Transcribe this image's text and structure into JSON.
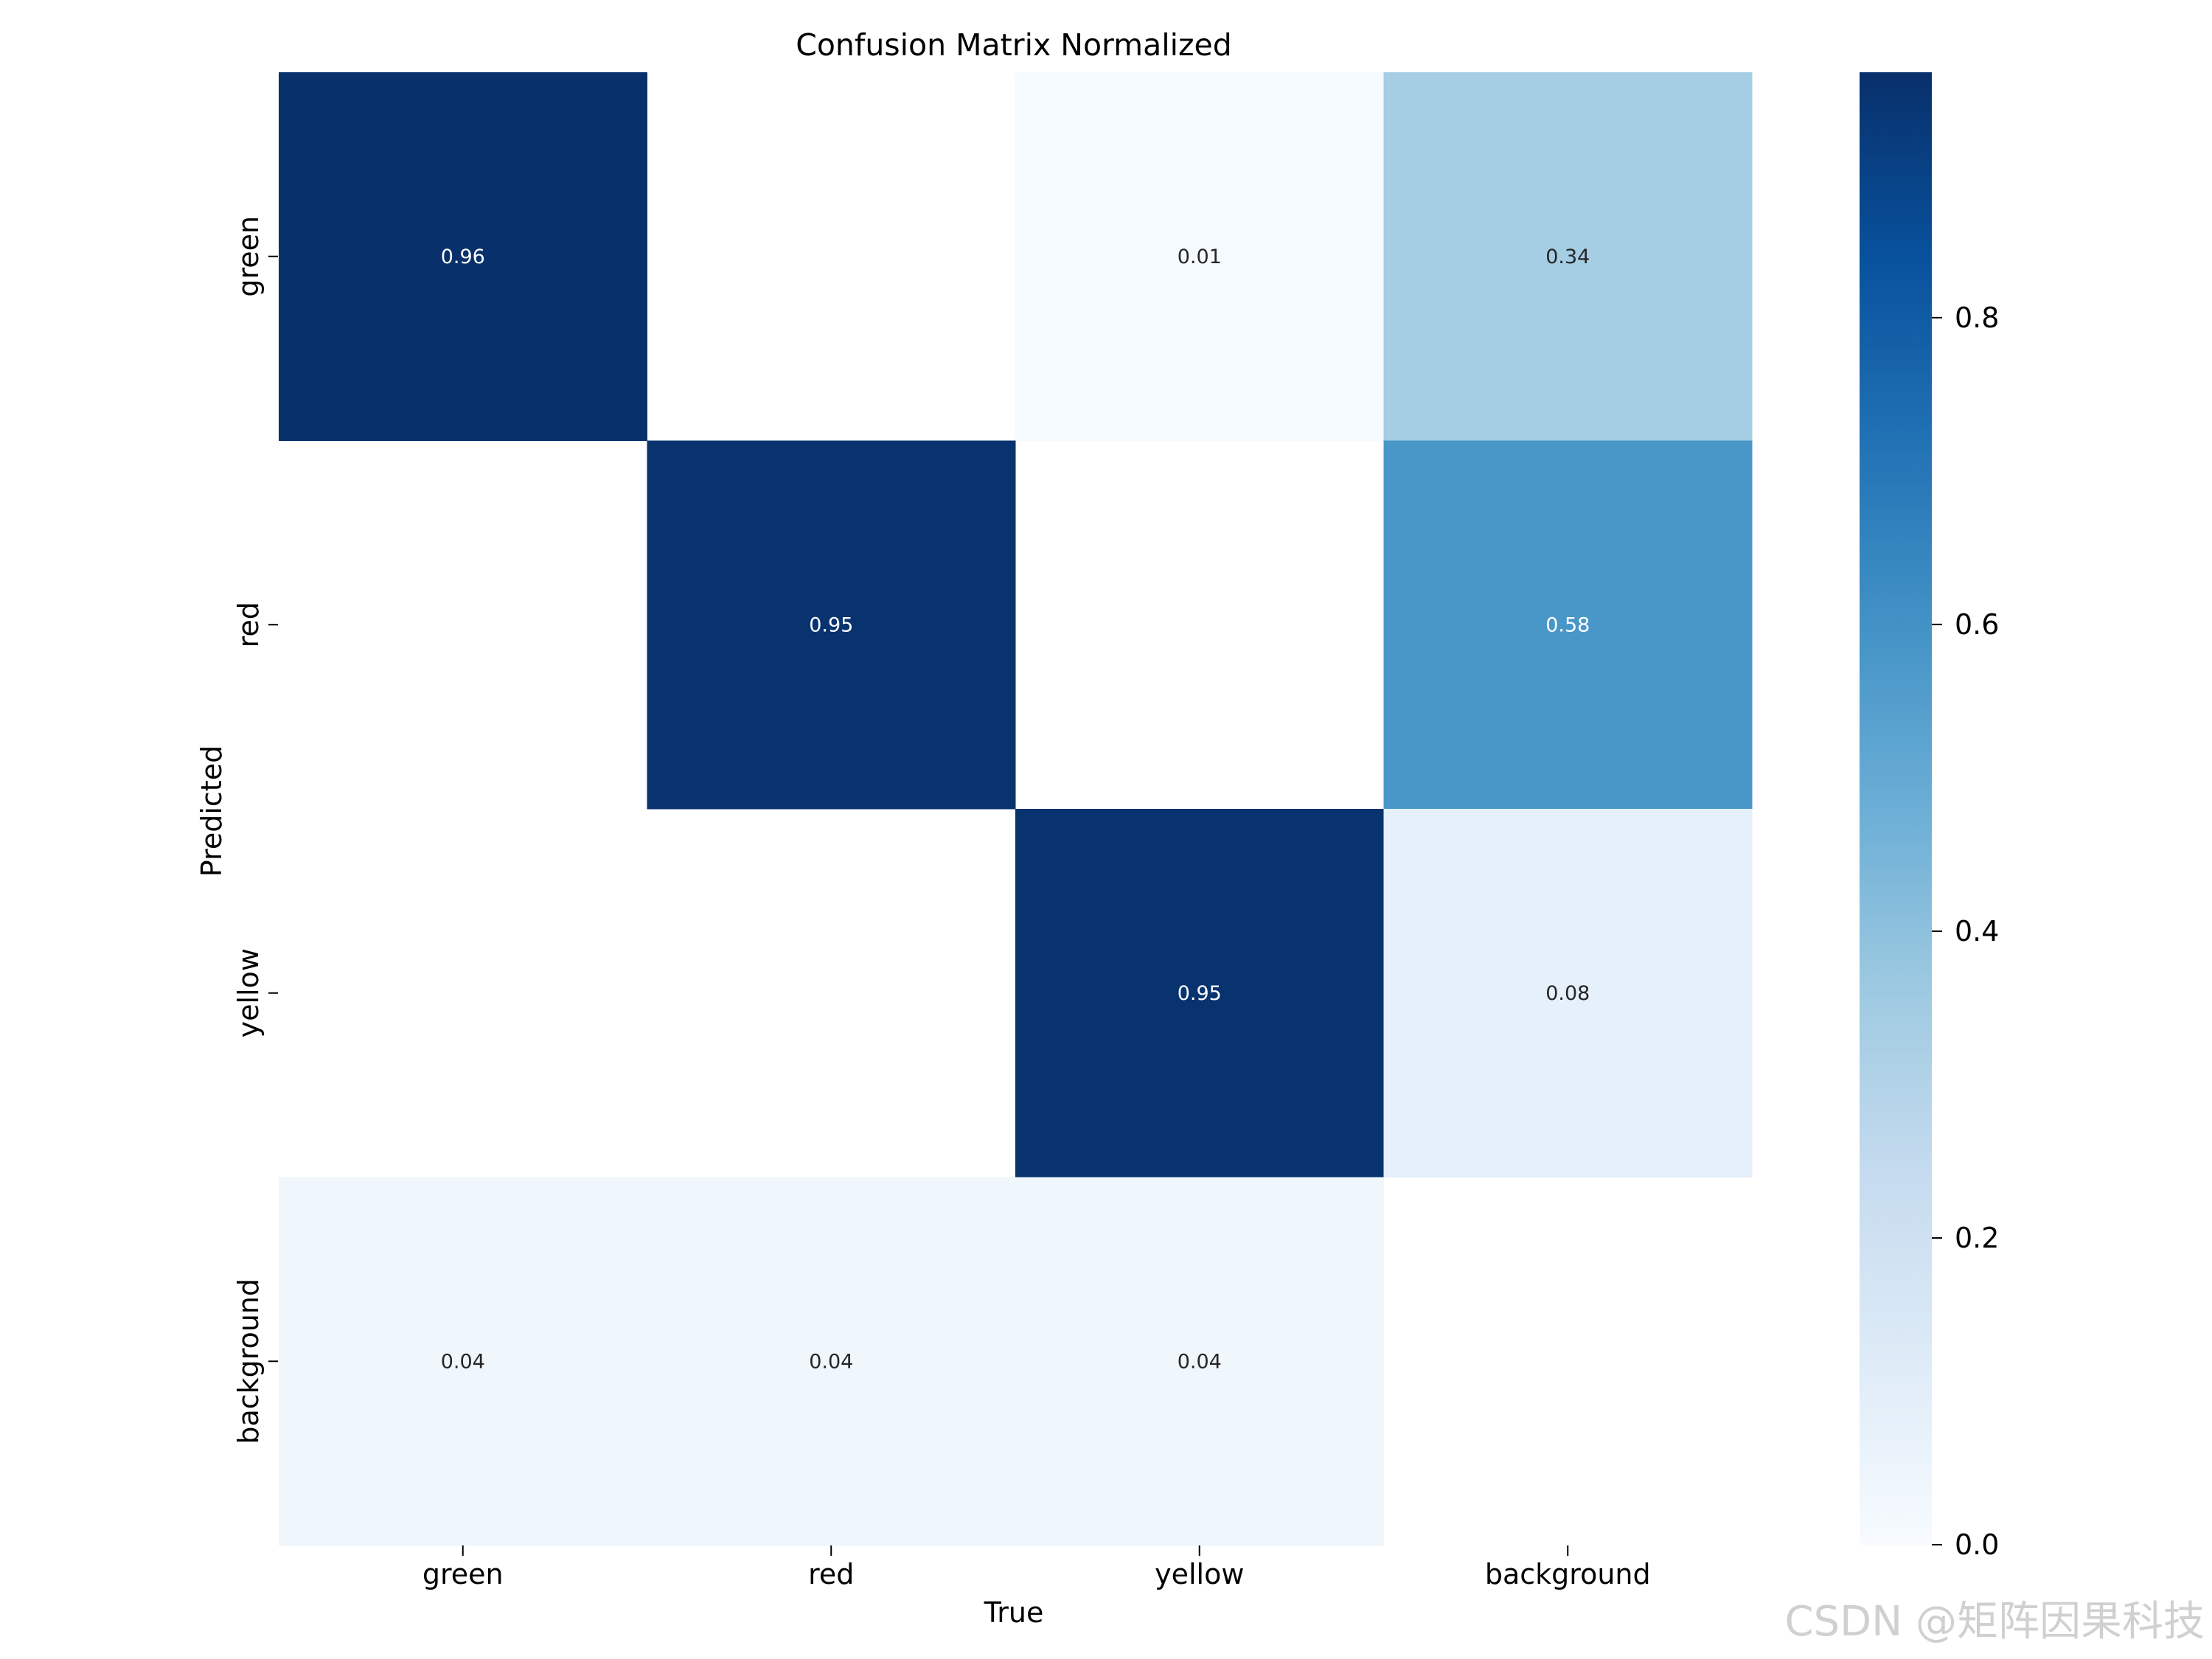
{
  "chart_data": {
    "type": "heatmap",
    "title": "Confusion Matrix Normalized",
    "xlabel": "True",
    "ylabel": "Predicted",
    "x_categories": [
      "green",
      "red",
      "yellow",
      "background"
    ],
    "y_categories": [
      "green",
      "red",
      "yellow",
      "background"
    ],
    "values": [
      [
        0.96,
        null,
        0.01,
        0.34
      ],
      [
        null,
        0.95,
        null,
        0.58
      ],
      [
        null,
        null,
        0.95,
        0.08
      ],
      [
        0.04,
        0.04,
        0.04,
        null
      ]
    ],
    "colormap": "Blues",
    "vmin": 0.0,
    "vmax": 0.96,
    "colorbar_ticks": [
      "0.0",
      "0.2",
      "0.4",
      "0.6",
      "0.8"
    ],
    "colorbar_tick_values": [
      0.0,
      0.2,
      0.4,
      0.6,
      0.8
    ],
    "grid": false,
    "legend": "colorbar-right"
  },
  "watermark": "CSDN @矩阵因果科技"
}
